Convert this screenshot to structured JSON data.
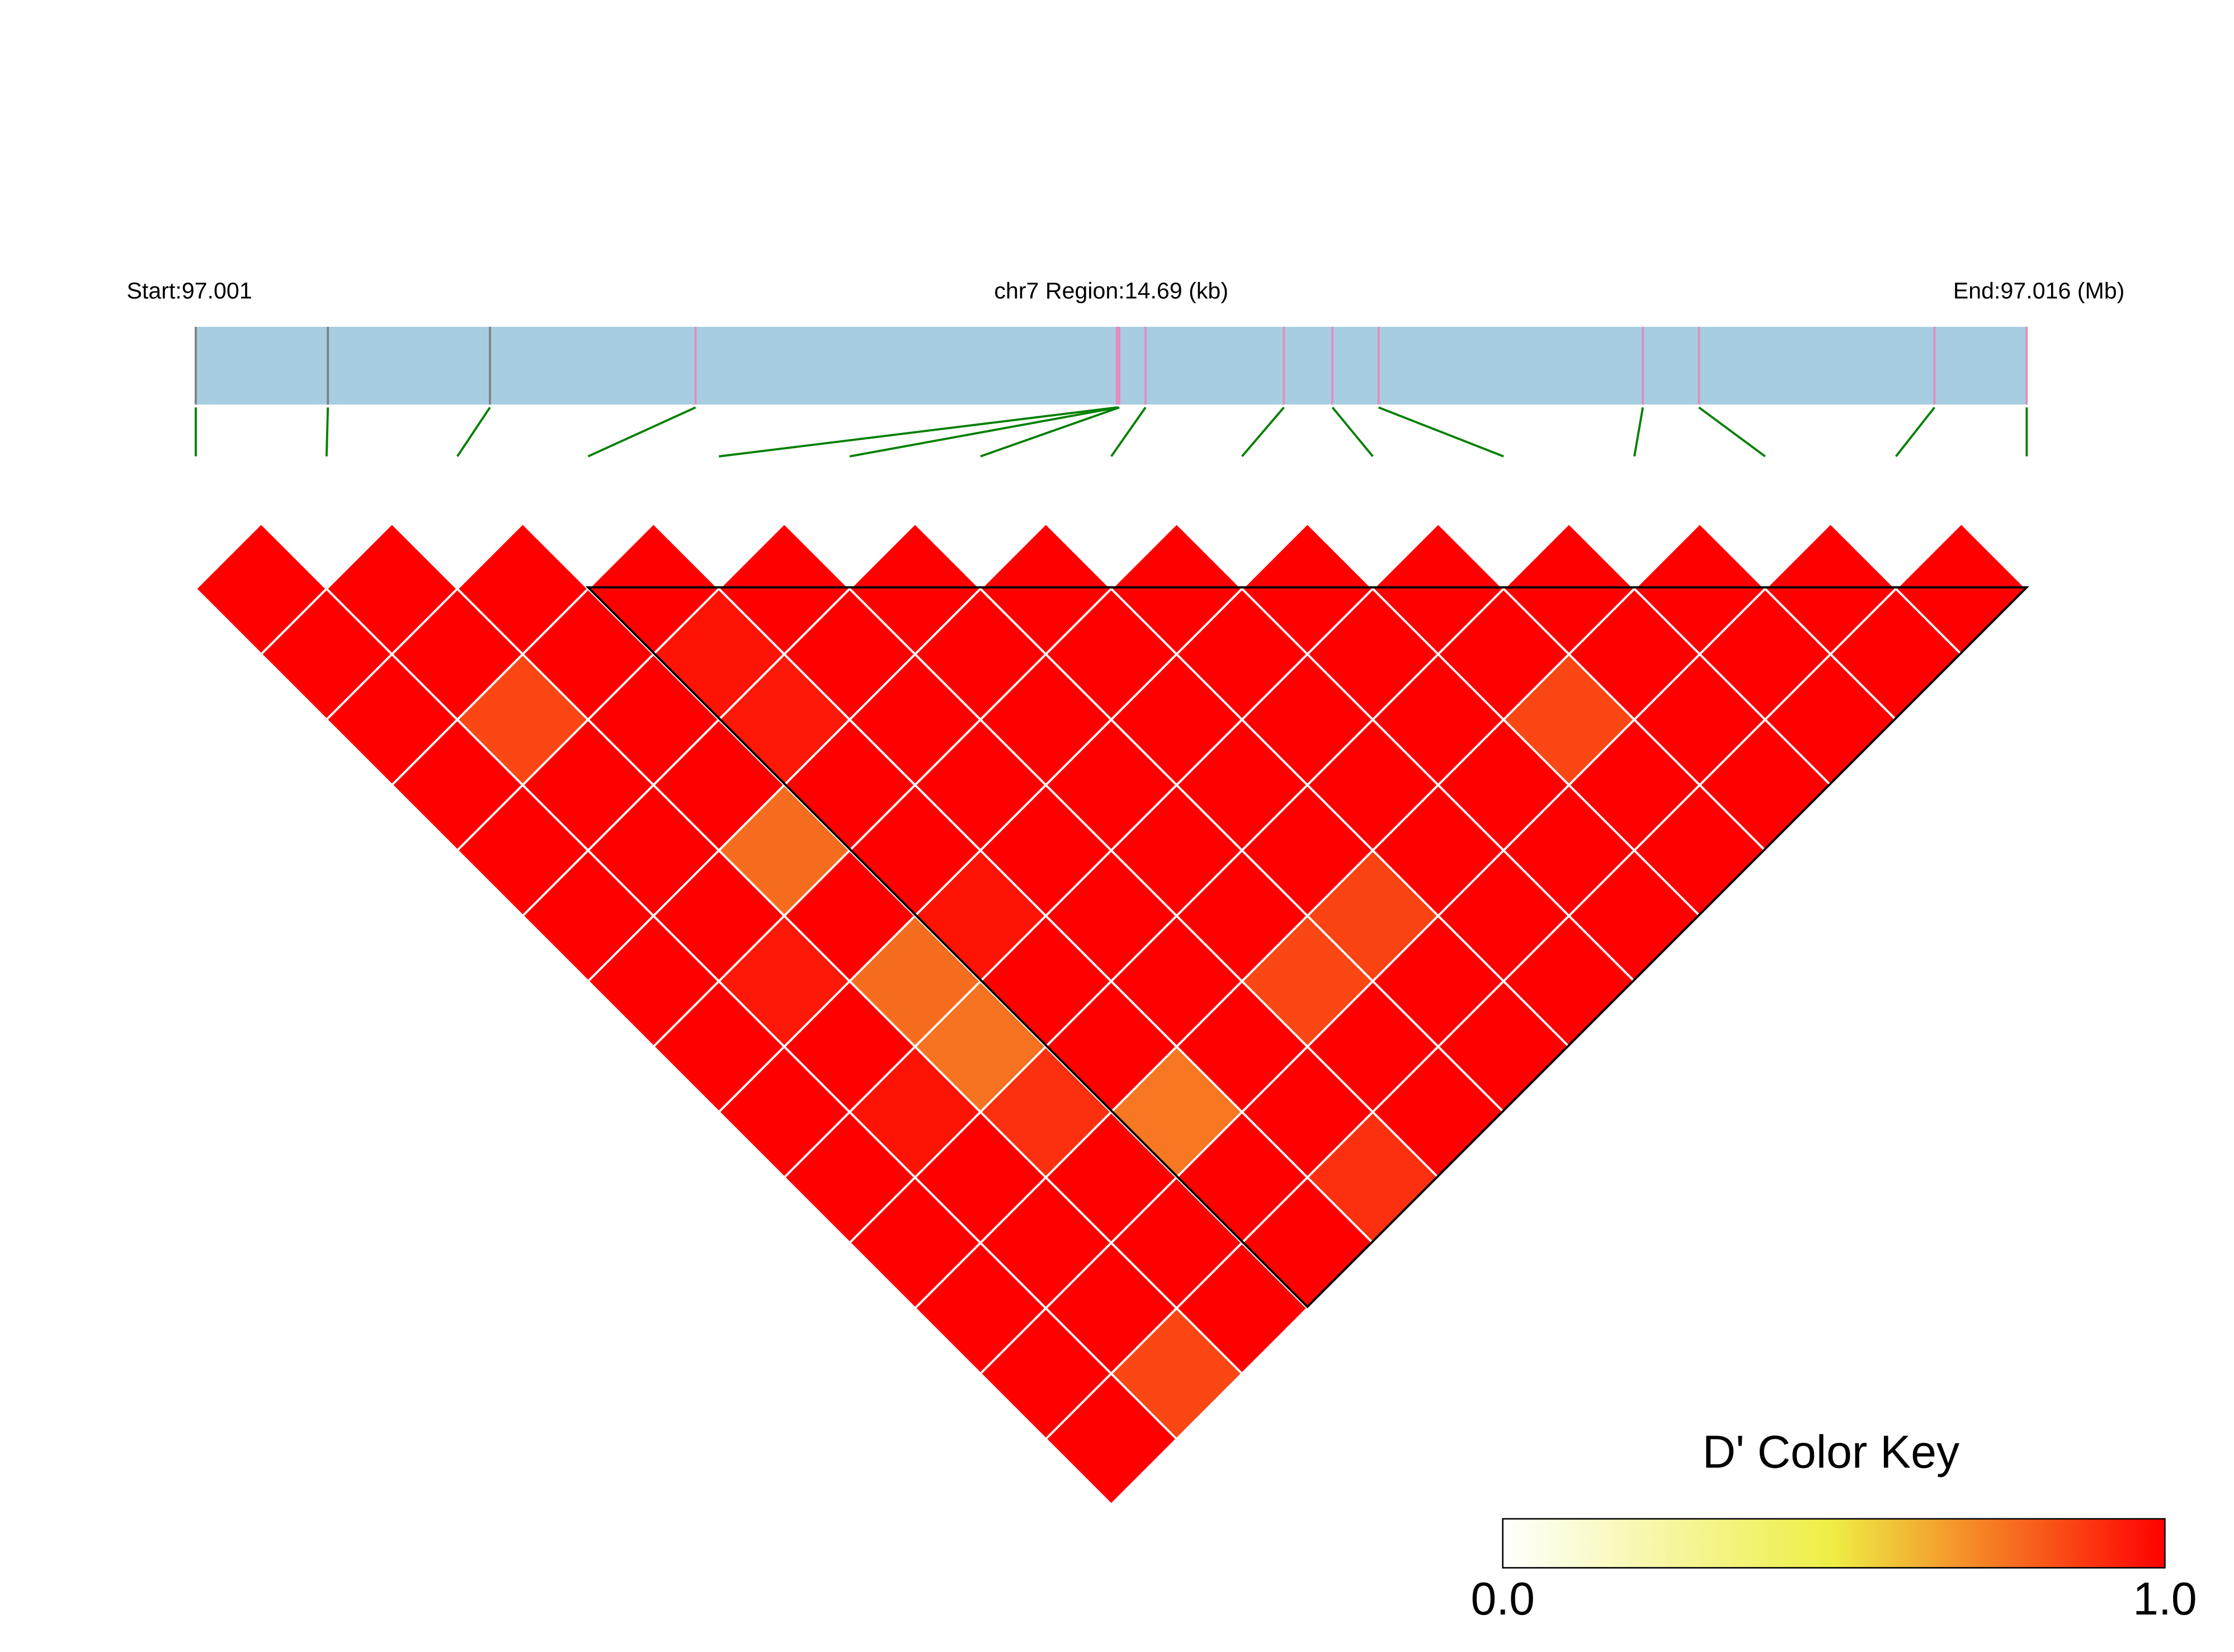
{
  "chart_data": {
    "type": "ld_heatmap",
    "start_label": "Start:97.001",
    "region_label": "chr7 Region:14.69 (kb)",
    "end_label": "End:97.016 (Mb)",
    "xlim": [
      0,
      14.69
    ],
    "snp_positions": [
      0,
      1.06,
      2.36,
      4.01,
      7.39,
      7.4,
      7.41,
      7.62,
      8.73,
      9.12,
      9.49,
      11.61,
      12.06,
      13.95,
      14.69
    ],
    "snp_colors": [
      "#808080",
      "#808080",
      "#808080",
      "#e48bc0",
      "#e48bc0",
      "#e48bc0",
      "#e48bc0",
      "#e48bc0",
      "#e48bc0",
      "#e48bc0",
      "#e48bc0",
      "#e48bc0",
      "#e48bc0",
      "#e48bc0",
      "#e48bc0"
    ],
    "bar_color": "#a6cee0",
    "connector_color": "#008000",
    "dprime": [
      [
        1,
        1,
        1,
        1,
        1,
        1,
        1,
        1,
        1,
        1,
        1,
        1,
        1,
        1
      ],
      [
        1,
        1,
        0.85,
        1,
        1,
        1,
        0.95,
        1,
        0.96,
        1,
        1,
        1,
        0.85
      ],
      [
        1,
        1,
        1,
        1,
        0.77,
        1,
        0.77,
        0.76,
        0.9,
        1,
        1,
        1
      ],
      [
        1,
        0.96,
        0.95,
        1,
        1,
        0.96,
        1,
        1,
        0.75,
        1,
        1
      ],
      [
        1,
        1,
        1,
        1,
        1,
        1,
        1,
        1,
        1,
        0.9
      ],
      [
        1,
        1,
        1,
        1,
        1,
        1,
        0.85,
        1,
        1
      ],
      [
        1,
        1,
        1,
        1,
        1,
        0.86,
        1,
        1
      ],
      [
        1,
        1,
        1,
        1,
        1,
        1,
        1
      ],
      [
        1,
        1,
        1,
        1,
        1,
        1
      ],
      [
        1,
        1,
        0.85,
        1,
        1
      ],
      [
        1,
        1,
        1,
        1
      ],
      [
        1,
        1,
        1
      ],
      [
        1,
        1
      ],
      [
        1
      ]
    ],
    "ld_blocks": [
      [
        4,
        15
      ]
    ],
    "palette": [
      "#ffffff",
      "#eeee44",
      "#ff0000"
    ],
    "color_key_title": "D' Color Key",
    "color_key_ticks": [
      {
        "value": 0,
        "label": "0.0"
      },
      {
        "value": 1,
        "label": "1.0"
      }
    ]
  }
}
